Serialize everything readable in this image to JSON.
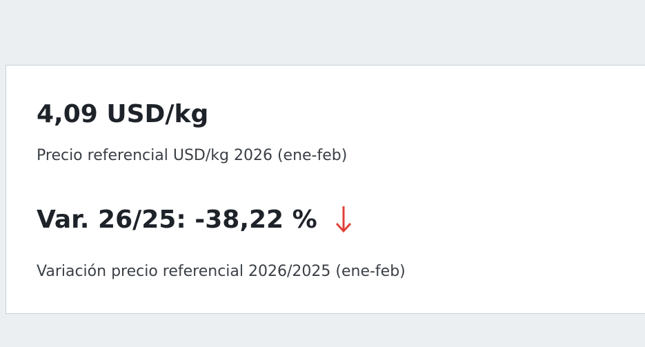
{
  "card": {
    "price": "4,09 USD/kg",
    "price_caption": "Precio referencial USD/kg 2026 (ene-feb)",
    "variation": "Var. 26/25: -38,22 %",
    "variation_caption": "Variación precio referencial 2026/2025 (ene-feb)"
  }
}
